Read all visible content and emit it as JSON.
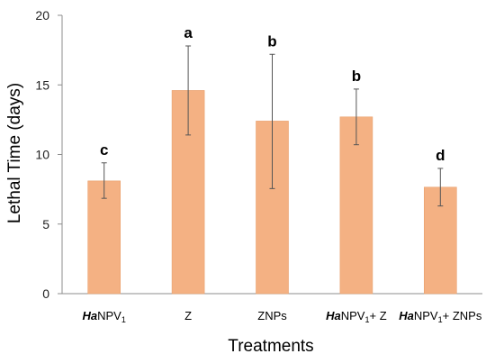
{
  "chart_data": {
    "type": "bar",
    "xlabel": "Treatments",
    "ylabel": "Lethal Time (days)",
    "ylim": [
      0,
      20
    ],
    "yticks": [
      0,
      5,
      10,
      15,
      20
    ],
    "grid": false,
    "colors": {
      "bar": "#f4b183",
      "bar_stroke": "#e8a06e",
      "axis": "#8c8c8c",
      "text": "#000000"
    },
    "categories": [
      {
        "italic": "Ha",
        "base": "NPV",
        "sub": "1",
        "rest": ""
      },
      {
        "italic": "",
        "base": "Z",
        "sub": "",
        "rest": ""
      },
      {
        "italic": "",
        "base": "ZNPs",
        "sub": "",
        "rest": ""
      },
      {
        "italic": "Ha",
        "base": "NPV",
        "sub": "1",
        "rest": "+ Z"
      },
      {
        "italic": "Ha",
        "base": "NPV",
        "sub": "1",
        "rest": "+ ZNPs"
      }
    ],
    "values": [
      8.1,
      14.6,
      12.4,
      12.7,
      7.65
    ],
    "error_low": [
      6.85,
      11.4,
      7.55,
      10.7,
      6.3
    ],
    "error_high": [
      9.4,
      17.8,
      17.2,
      14.7,
      9.0
    ],
    "significance_letters": [
      "c",
      "a",
      "b",
      "b",
      "d"
    ]
  }
}
